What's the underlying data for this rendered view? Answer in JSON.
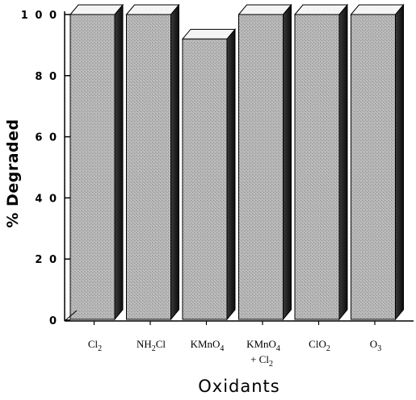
{
  "chart_data": {
    "type": "bar",
    "title": "",
    "xlabel": "Oxidants",
    "ylabel": "% Degraded",
    "ylim": [
      0,
      100
    ],
    "yticks": [
      "0",
      "2 0",
      "4 0",
      "6 0",
      "8 0",
      "1 0 0"
    ],
    "categories": [
      {
        "line1": "Cl",
        "sub1": "2",
        "line2": ""
      },
      {
        "line1": "NH",
        "sub1": "2",
        "post1": "Cl",
        "line2": ""
      },
      {
        "line1": "KMnO",
        "sub1": "4",
        "line2": ""
      },
      {
        "line1": "KMnO",
        "sub1": "4",
        "line2": "+ Cl",
        "sub2": "2"
      },
      {
        "line1": "ClO",
        "sub1": "2",
        "line2": ""
      },
      {
        "line1": "O",
        "sub1": "3",
        "line2": ""
      }
    ],
    "values": [
      100,
      100,
      92,
      100,
      100,
      100
    ],
    "grid": false,
    "style": "3d-shaded",
    "colors": {
      "front": "#b4b4b4",
      "top": "#f4f4f4",
      "side": "#1e1e1e",
      "axis": "#000000"
    }
  }
}
